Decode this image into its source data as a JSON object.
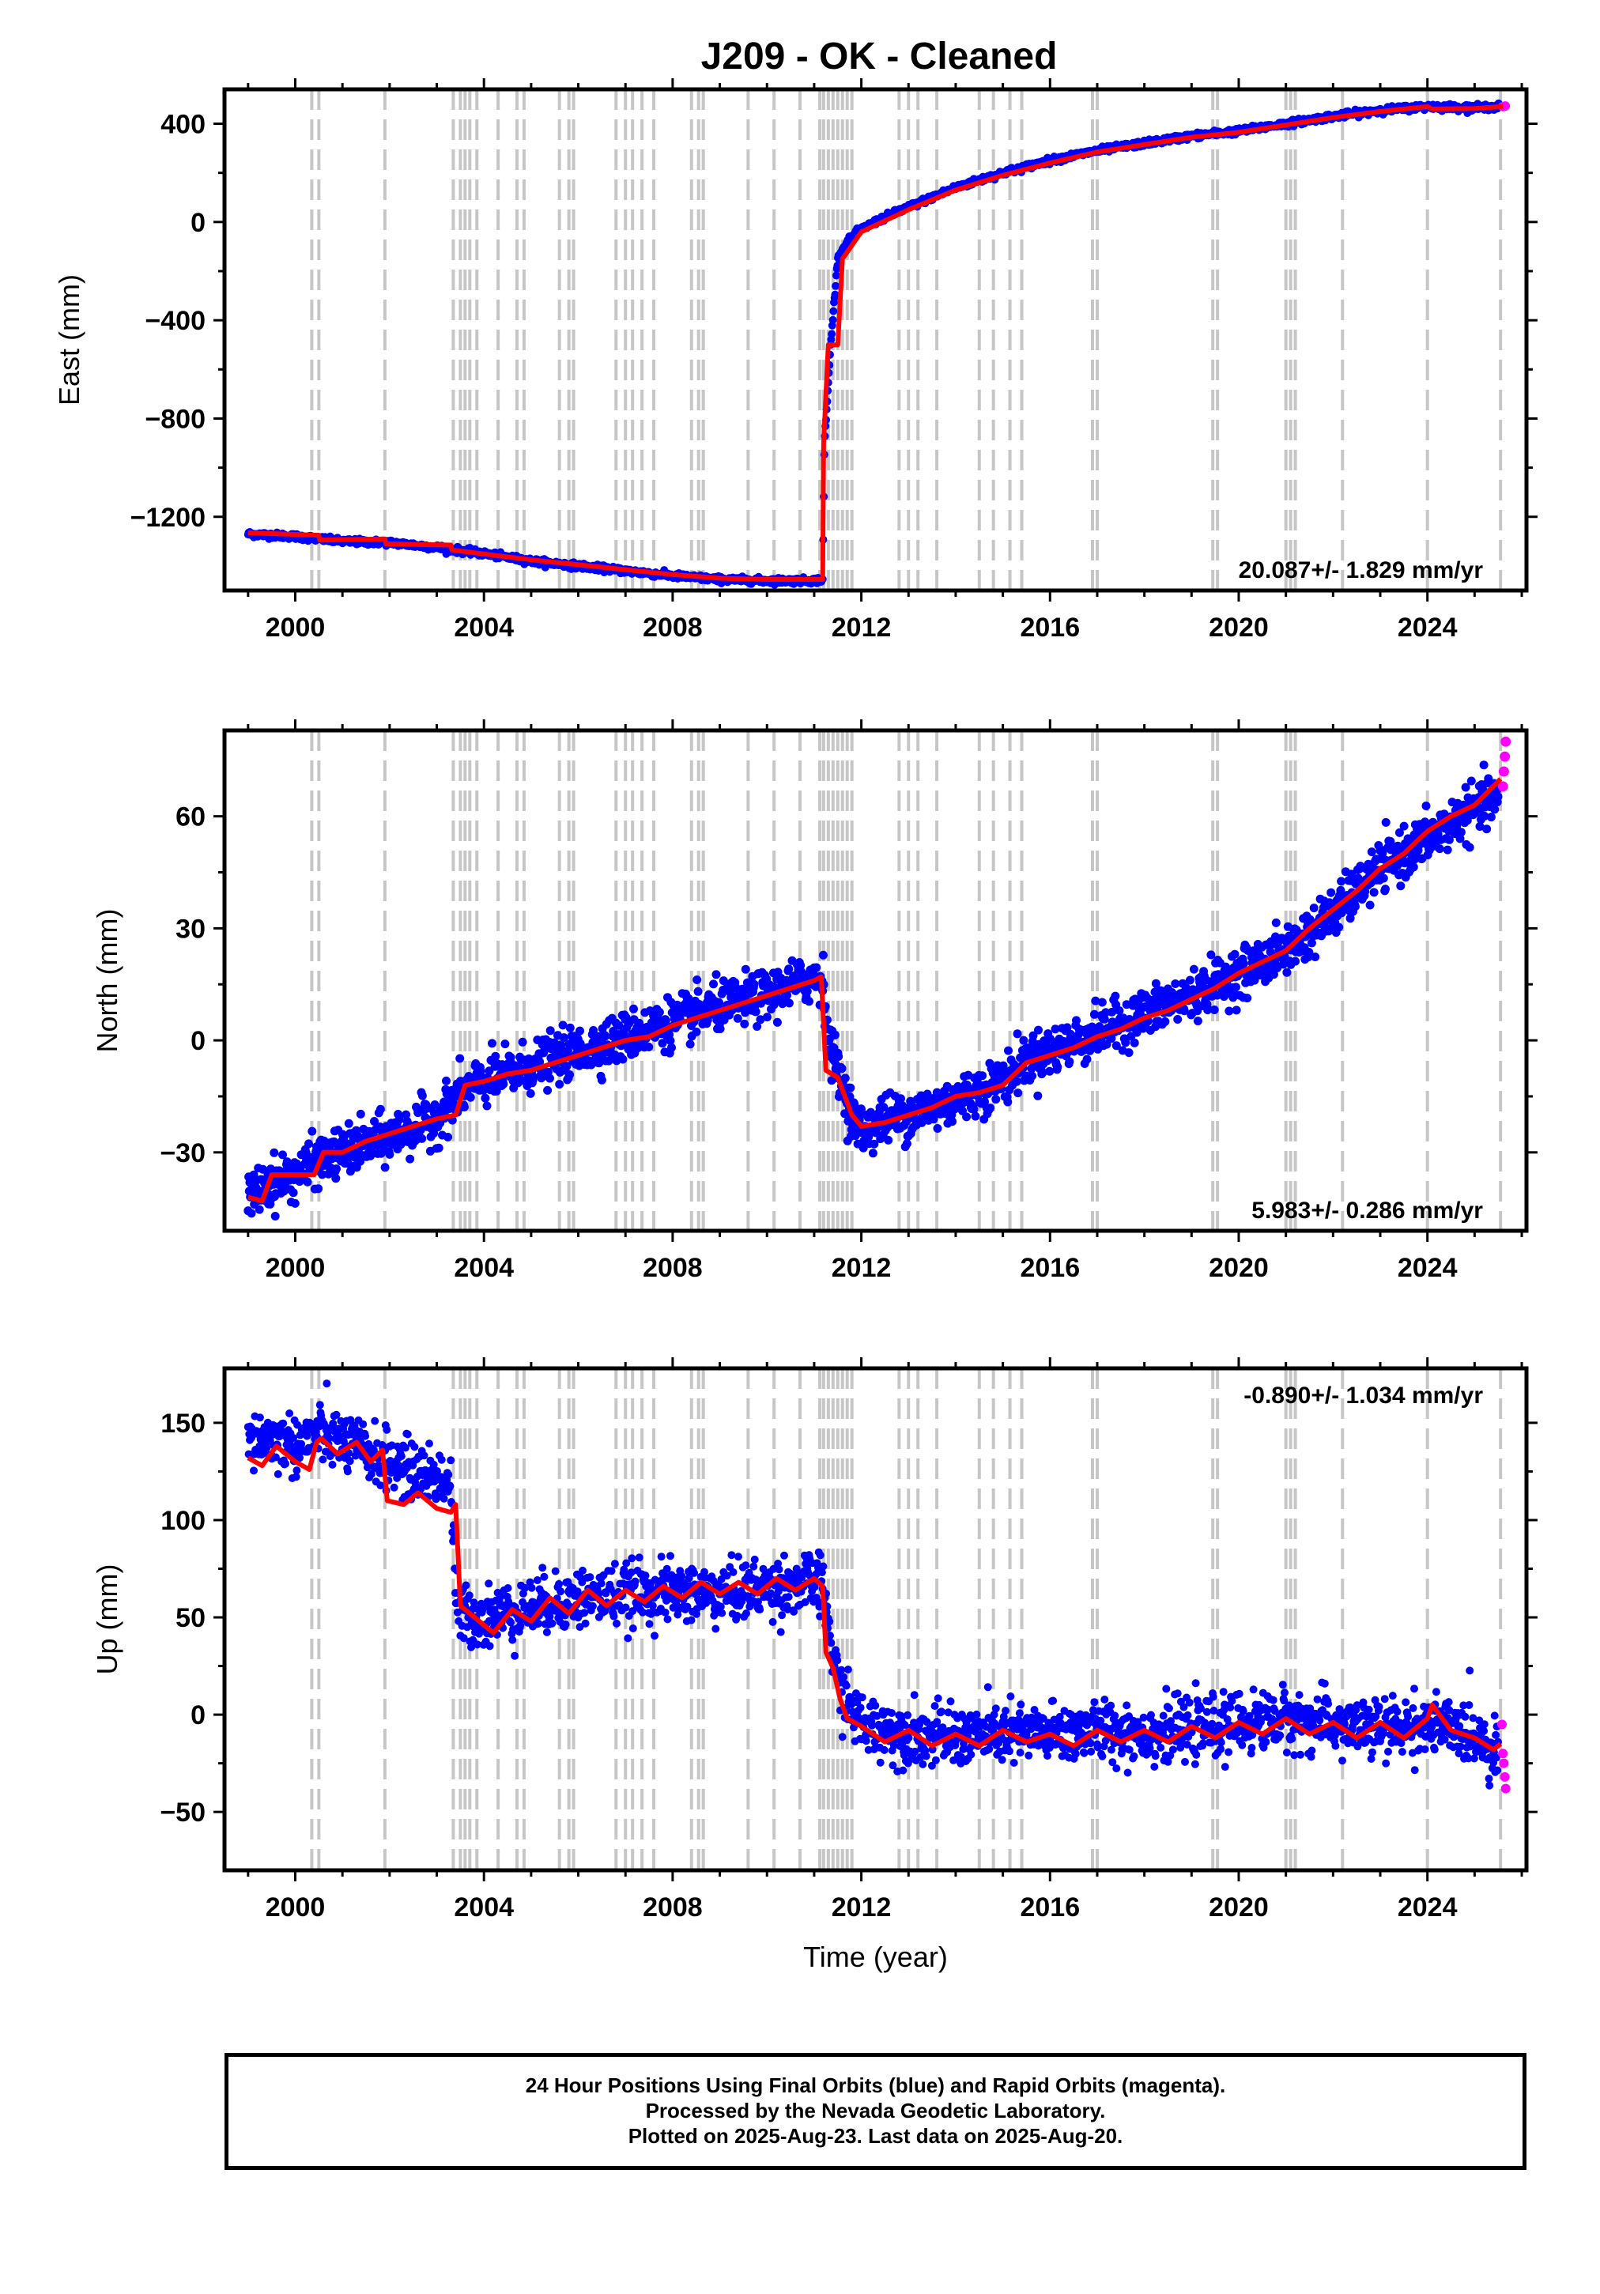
{
  "title": "J209  - OK - Cleaned",
  "colors": {
    "final": "#0000ff",
    "rapid": "#ff00ff",
    "model": "#ff0000",
    "events": "#c6c6c6"
  },
  "x_axis": {
    "label": "Time (year)",
    "ticks": [
      2000,
      2004,
      2008,
      2012,
      2016,
      2020,
      2024
    ],
    "range": [
      1998.5,
      2026.1
    ]
  },
  "event_lines": [
    2000.35,
    2000.5,
    2001.9,
    2003.35,
    2003.5,
    2003.6,
    2003.7,
    2003.85,
    2004.3,
    2004.7,
    2004.85,
    2005.6,
    2005.8,
    2005.9,
    2006.8,
    2007.0,
    2007.15,
    2007.35,
    2007.6,
    2008.4,
    2008.55,
    2008.65,
    2009.6,
    2010.15,
    2010.7,
    2011.12,
    2011.2,
    2011.3,
    2011.4,
    2011.5,
    2011.6,
    2011.7,
    2011.8,
    2012.8,
    2013.0,
    2013.2,
    2013.6,
    2014.5,
    2014.8,
    2015.15,
    2015.4,
    2016.9,
    2017.0,
    2019.45,
    2019.55,
    2021.0,
    2021.1,
    2021.2,
    2022.2,
    2024.0,
    2025.55
  ],
  "chart_data": [
    {
      "type": "scatter",
      "ylabel": "East (mm)",
      "yticks": [
        400,
        0,
        -400,
        -800,
        -1200
      ],
      "ylim": [
        -1500,
        540
      ],
      "rate_label": "20.087+/- 1.829 mm/yr",
      "rate_position": "bottom-right",
      "series": [
        {
          "name": "Final Orbits",
          "color": "#0000ff",
          "x": [
            1999.0,
            2000.0,
            2000.5,
            2001.0,
            2002.0,
            2003.0,
            2004.0,
            2005.0,
            2006.0,
            2007.0,
            2008.0,
            2009.0,
            2010.0,
            2011.0,
            2011.18,
            2011.22,
            2011.35,
            2011.5,
            2011.7,
            2012.0,
            2012.5,
            2013.0,
            2014.0,
            2015.0,
            2016.0,
            2017.0,
            2018.0,
            2019.0,
            2020.0,
            2021.0,
            2022.0,
            2023.0,
            2024.0,
            2025.0,
            2025.55
          ],
          "y": [
            -1270,
            -1280,
            -1290,
            -1300,
            -1305,
            -1325,
            -1350,
            -1380,
            -1400,
            -1420,
            -1440,
            -1455,
            -1460,
            -1460,
            -1455,
            -900,
            -500,
            -150,
            -80,
            -30,
            20,
            60,
            140,
            200,
            250,
            290,
            320,
            350,
            370,
            400,
            430,
            455,
            470,
            465,
            470
          ]
        },
        {
          "name": "Rapid Orbits",
          "color": "#ff00ff",
          "x": [
            2025.6,
            2025.65
          ],
          "y": [
            470,
            472
          ]
        }
      ],
      "model": {
        "x": [
          1999.0,
          2000.5,
          2000.52,
          2001.9,
          2001.92,
          2003.3,
          2003.32,
          2005.0,
          2006.0,
          2007.0,
          2008.0,
          2009.0,
          2010.0,
          2011.18,
          2011.2,
          2011.3,
          2011.5,
          2011.6,
          2012.0,
          2013.0,
          2014.0,
          2015.0,
          2016.0,
          2017.0,
          2018.0,
          2019.0,
          2020.0,
          2021.0,
          2022.0,
          2023.0,
          2024.0,
          2024.1,
          2025.0,
          2025.6
        ],
        "y": [
          -1265,
          -1275,
          -1295,
          -1290,
          -1310,
          -1315,
          -1335,
          -1375,
          -1395,
          -1415,
          -1435,
          -1450,
          -1455,
          -1455,
          -900,
          -500,
          -500,
          -150,
          -40,
          50,
          130,
          190,
          240,
          285,
          315,
          345,
          365,
          395,
          425,
          450,
          470,
          460,
          462,
          470
        ]
      }
    },
    {
      "type": "scatter",
      "ylabel": "North (mm)",
      "yticks": [
        60,
        30,
        0,
        -30
      ],
      "ylim": [
        -51,
        83
      ],
      "rate_label": "5.983+/- 0.286 mm/yr",
      "rate_position": "bottom-right",
      "series": [
        {
          "name": "Final Orbits",
          "color": "#0000ff",
          "x": [
            1999.0,
            1999.5,
            2000.0,
            2000.5,
            2001.0,
            2002.0,
            2003.0,
            2003.5,
            2004.0,
            2005.0,
            2006.0,
            2007.0,
            2008.0,
            2009.0,
            2010.0,
            2011.0,
            2011.2,
            2011.3,
            2011.5,
            2011.8,
            2012.0,
            2012.5,
            2013.0,
            2014.0,
            2015.0,
            2015.5,
            2016.0,
            2017.0,
            2018.0,
            2019.0,
            2020.0,
            2021.0,
            2022.0,
            2023.0,
            2024.0,
            2025.0,
            2025.5
          ],
          "y": [
            -42,
            -38,
            -36,
            -32,
            -30,
            -26,
            -21,
            -14,
            -11,
            -7,
            -3,
            1,
            5,
            9,
            12,
            17,
            16,
            0,
            -8,
            -20,
            -24,
            -21,
            -20,
            -16,
            -11,
            -5,
            -3,
            2,
            7,
            12,
            18,
            24,
            34,
            46,
            54,
            62,
            65
          ]
        },
        {
          "name": "Rapid Orbits",
          "color": "#ff00ff",
          "x": [
            2025.6,
            2025.62,
            2025.64,
            2025.66
          ],
          "y": [
            68,
            72,
            76,
            80
          ]
        }
      ],
      "model": {
        "x": [
          1999.0,
          1999.3,
          1999.5,
          2000.0,
          2000.4,
          2000.6,
          2001.0,
          2001.5,
          2002.0,
          2002.5,
          2003.0,
          2003.4,
          2003.6,
          2004.0,
          2004.5,
          2005.0,
          2005.5,
          2006.0,
          2006.5,
          2007.0,
          2007.5,
          2008.0,
          2008.5,
          2009.0,
          2009.5,
          2010.0,
          2010.5,
          2011.0,
          2011.15,
          2011.25,
          2011.5,
          2011.8,
          2012.0,
          2012.5,
          2013.0,
          2013.5,
          2014.0,
          2014.5,
          2015.0,
          2015.5,
          2016.0,
          2016.5,
          2017.0,
          2017.5,
          2018.0,
          2018.5,
          2019.0,
          2019.5,
          2020.0,
          2020.5,
          2021.0,
          2021.5,
          2022.0,
          2022.5,
          2023.0,
          2023.5,
          2024.0,
          2024.5,
          2025.0,
          2025.55
        ],
        "y": [
          -42,
          -43,
          -36,
          -36,
          -36,
          -30,
          -30,
          -27,
          -25,
          -23,
          -21,
          -20,
          -12,
          -11,
          -9,
          -8,
          -6,
          -4,
          -2,
          0,
          1,
          4,
          6,
          8,
          10,
          12,
          14,
          16,
          17,
          -8,
          -10,
          -20,
          -23,
          -22,
          -20,
          -18,
          -15,
          -14,
          -12,
          -6,
          -4,
          -2,
          1,
          3,
          6,
          8,
          11,
          14,
          18,
          21,
          24,
          30,
          35,
          40,
          46,
          50,
          56,
          60,
          63,
          70
        ]
      }
    },
    {
      "type": "scatter",
      "xlabel": "Time (year)",
      "ylabel": "Up (mm)",
      "yticks": [
        150,
        100,
        50,
        0,
        -50
      ],
      "ylim": [
        -80,
        178
      ],
      "rate_label": "-0.890+/- 1.034 mm/yr",
      "rate_position": "top-right",
      "series": [
        {
          "name": "Final Orbits",
          "color": "#0000ff",
          "x": [
            1999.0,
            1999.5,
            2000.0,
            2000.5,
            2001.0,
            2001.5,
            2002.0,
            2002.5,
            2003.0,
            2003.3,
            2003.4,
            2003.5,
            2004.0,
            2005.0,
            2006.0,
            2007.0,
            2008.0,
            2009.0,
            2010.0,
            2011.0,
            2011.2,
            2011.4,
            2011.6,
            2012.0,
            2013.0,
            2014.0,
            2015.0,
            2016.0,
            2017.0,
            2018.0,
            2019.0,
            2020.0,
            2021.0,
            2022.0,
            2023.0,
            2024.0,
            2025.0,
            2025.5
          ],
          "y": [
            140,
            142,
            138,
            145,
            140,
            135,
            130,
            125,
            122,
            120,
            60,
            52,
            50,
            55,
            60,
            62,
            63,
            62,
            65,
            68,
            64,
            28,
            10,
            -5,
            -10,
            -12,
            -10,
            -10,
            -8,
            -10,
            -8,
            -5,
            -2,
            -5,
            -8,
            -5,
            -10,
            -20
          ]
        },
        {
          "name": "Rapid Orbits",
          "color": "#ff00ff",
          "x": [
            2025.58,
            2025.6,
            2025.62,
            2025.64,
            2025.66
          ],
          "y": [
            -5,
            -20,
            -25,
            -32,
            -38
          ]
        }
      ],
      "model": {
        "x": [
          1999.0,
          1999.3,
          1999.6,
          2000.0,
          2000.3,
          2000.45,
          2000.55,
          2000.9,
          2001.3,
          2001.6,
          2001.85,
          2001.95,
          2002.3,
          2002.6,
          2003.0,
          2003.3,
          2003.4,
          2003.5,
          2003.8,
          2004.2,
          2004.6,
          2005.0,
          2005.4,
          2005.8,
          2006.2,
          2006.6,
          2007.0,
          2007.4,
          2007.8,
          2008.2,
          2008.6,
          2009.0,
          2009.4,
          2009.8,
          2010.2,
          2010.6,
          2011.0,
          2011.18,
          2011.25,
          2011.4,
          2011.55,
          2011.7,
          2012.0,
          2012.5,
          2013.0,
          2013.5,
          2014.0,
          2014.5,
          2015.0,
          2015.5,
          2016.0,
          2016.5,
          2017.0,
          2017.5,
          2018.0,
          2018.5,
          2019.0,
          2019.5,
          2020.0,
          2020.5,
          2021.0,
          2021.5,
          2022.0,
          2022.5,
          2023.0,
          2023.5,
          2024.0,
          2024.1,
          2024.5,
          2025.0,
          2025.4,
          2025.55
        ],
        "y": [
          132,
          128,
          138,
          130,
          126,
          140,
          142,
          134,
          140,
          130,
          136,
          110,
          108,
          114,
          106,
          104,
          108,
          56,
          50,
          42,
          54,
          48,
          60,
          52,
          64,
          56,
          64,
          58,
          66,
          60,
          68,
          62,
          68,
          62,
          70,
          64,
          70,
          66,
          32,
          24,
          8,
          -2,
          -6,
          -14,
          -8,
          -16,
          -10,
          -16,
          -8,
          -14,
          -10,
          -16,
          -8,
          -14,
          -8,
          -14,
          -6,
          -12,
          -4,
          -10,
          -2,
          -10,
          -4,
          -12,
          -4,
          -12,
          -2,
          5,
          -8,
          -12,
          -18,
          -15
        ]
      }
    }
  ],
  "footer": {
    "line1": "24 Hour Positions Using Final Orbits (blue) and Rapid Orbits (magenta).",
    "line2": "Processed by the Nevada Geodetic Laboratory.",
    "line3": "Plotted on 2025-Aug-23. Last data on 2025-Aug-20."
  }
}
